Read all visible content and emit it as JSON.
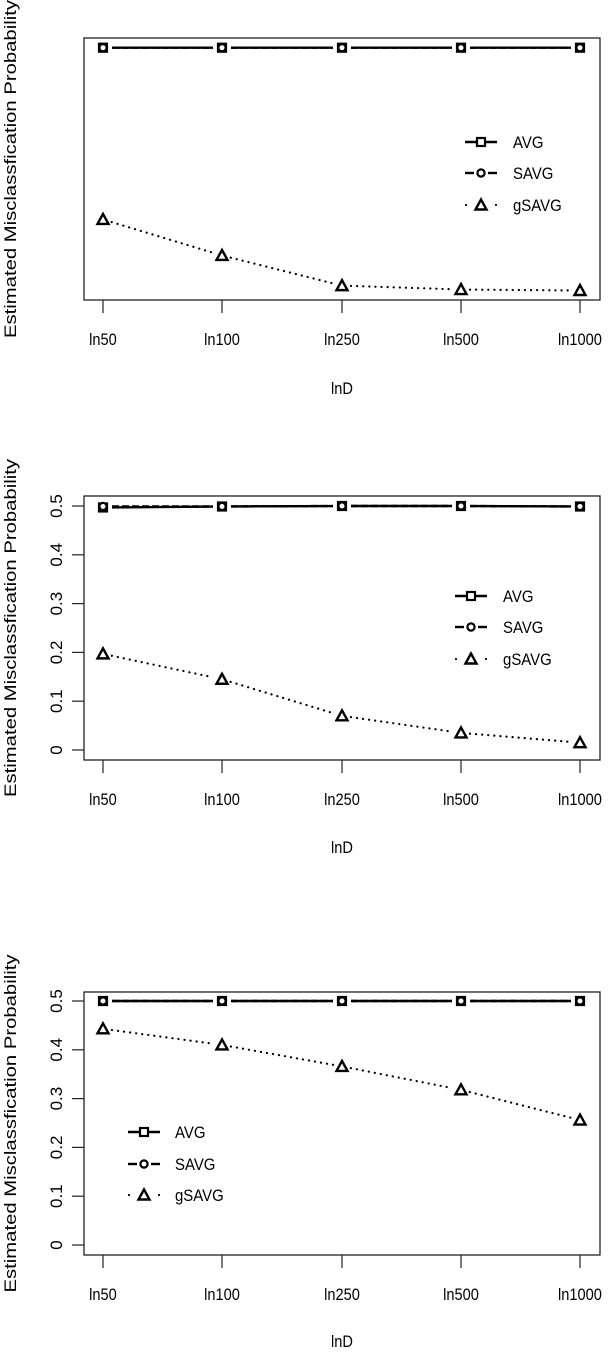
{
  "chart_data": [
    {
      "type": "line",
      "title": "",
      "xlabel": "lnD",
      "ylabel": "Estimated Misclassfication Probability",
      "categories": [
        "ln50",
        "ln100",
        "ln250",
        "ln500",
        "ln1000"
      ],
      "yticks_shown": false,
      "ylim": [
        0.001,
        0.5
      ],
      "grid": false,
      "legend_position": "right-middle",
      "series": [
        {
          "name": "AVG",
          "line": "solid",
          "marker": "square",
          "values": [
            0.5,
            0.5,
            0.5,
            0.5,
            0.5
          ]
        },
        {
          "name": "SAVG",
          "line": "dashed",
          "marker": "circle",
          "values": [
            0.5,
            0.5,
            0.5,
            0.5,
            0.5
          ]
        },
        {
          "name": "gSAVG",
          "line": "dotted",
          "marker": "triangle",
          "values": [
            0.147,
            0.073,
            0.011,
            0.003,
            0.001
          ]
        }
      ]
    },
    {
      "type": "line",
      "title": "",
      "xlabel": "lnD",
      "ylabel": "Estimated Misclassfication Probability",
      "categories": [
        "ln50",
        "ln100",
        "ln250",
        "ln500",
        "ln1000"
      ],
      "yticks": [
        "0",
        "0.1",
        "0.2",
        "0.3",
        "0.4",
        "0.5"
      ],
      "ylim": [
        0,
        0.5
      ],
      "grid": false,
      "legend_position": "right-middle",
      "series": [
        {
          "name": "AVG",
          "line": "solid",
          "marker": "square",
          "values": [
            0.497,
            0.499,
            0.5,
            0.5,
            0.499
          ]
        },
        {
          "name": "SAVG",
          "line": "dashed",
          "marker": "circle",
          "values": [
            0.499,
            0.499,
            0.5,
            0.5,
            0.499
          ]
        },
        {
          "name": "gSAVG",
          "line": "dotted",
          "marker": "triangle",
          "values": [
            0.197,
            0.145,
            0.07,
            0.035,
            0.015
          ]
        }
      ]
    },
    {
      "type": "line",
      "title": "",
      "xlabel": "lnD",
      "ylabel": "Estimated Misclassfication Probability",
      "categories": [
        "ln50",
        "ln100",
        "ln250",
        "ln500",
        "ln1000"
      ],
      "yticks": [
        "0",
        "0.1",
        "0.2",
        "0.3",
        "0.4",
        "0.5"
      ],
      "ylim": [
        0,
        0.5
      ],
      "grid": false,
      "legend_position": "left-lower",
      "series": [
        {
          "name": "AVG",
          "line": "solid",
          "marker": "square",
          "values": [
            0.5,
            0.5,
            0.5,
            0.5,
            0.5
          ]
        },
        {
          "name": "SAVG",
          "line": "dashed",
          "marker": "circle",
          "values": [
            0.5,
            0.5,
            0.5,
            0.5,
            0.5
          ]
        },
        {
          "name": "gSAVG",
          "line": "dotted",
          "marker": "triangle",
          "values": [
            0.443,
            0.41,
            0.366,
            0.318,
            0.256
          ]
        }
      ]
    }
  ]
}
